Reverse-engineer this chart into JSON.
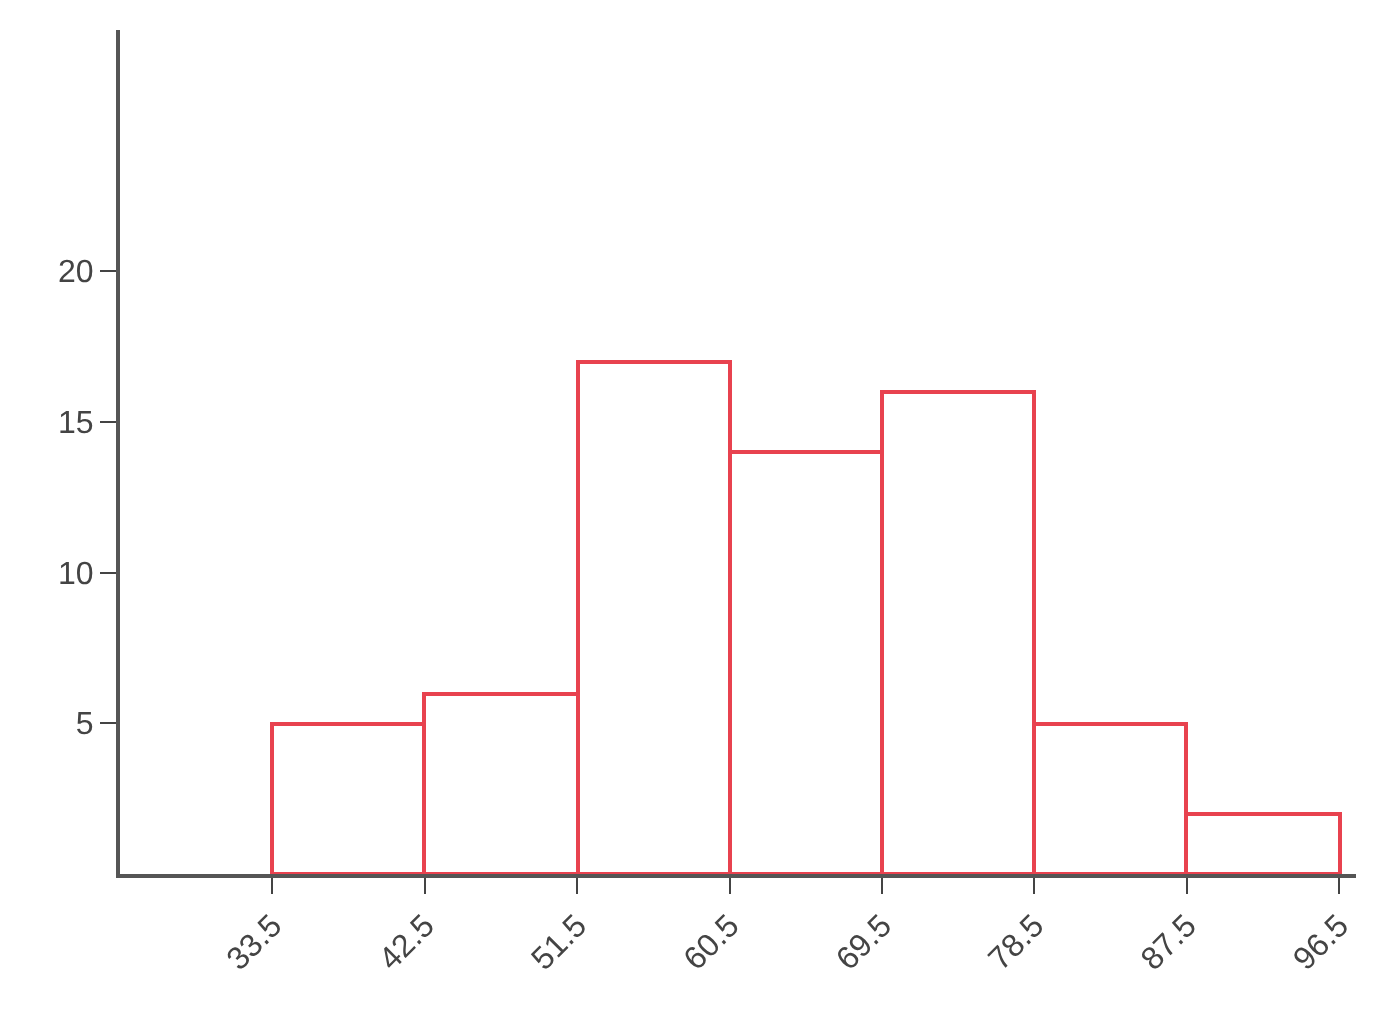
{
  "chart_data": {
    "type": "histogram",
    "bins": [
      33.5,
      42.5,
      51.5,
      60.5,
      69.5,
      78.5,
      87.5,
      96.5
    ],
    "values": [
      5,
      6,
      17,
      14,
      16,
      5,
      2
    ],
    "color": "#e8424f",
    "xlim": [
      24.5,
      97.5
    ],
    "xticks": [
      33.5,
      42.5,
      51.5,
      60.5,
      69.5,
      78.5,
      87.5,
      96.5
    ],
    "ylim": [
      0,
      28
    ],
    "yticks": [
      5,
      10,
      15,
      20
    ]
  }
}
